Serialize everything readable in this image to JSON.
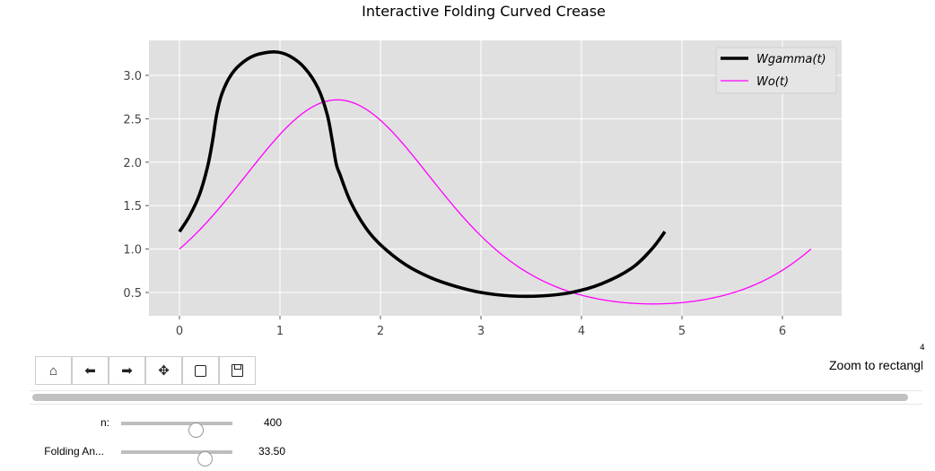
{
  "chart_data": {
    "type": "line",
    "title": "Interactive Folding Curved Crease",
    "xlabel": "",
    "ylabel": "",
    "xlim": [
      -0.3,
      6.6
    ],
    "ylim": [
      0.23,
      3.4
    ],
    "xticks": [
      "0",
      "1",
      "2",
      "3",
      "4",
      "5",
      "6"
    ],
    "yticks": [
      "0.5",
      "1.0",
      "1.5",
      "2.0",
      "2.5",
      "3.0"
    ],
    "grid": true,
    "legend_position": "top-right",
    "series": [
      {
        "name": "Wgamma(t)",
        "color": "#000000",
        "x": [
          0,
          0.1,
          0.2,
          0.28,
          0.33,
          0.37,
          0.42,
          0.5,
          0.6,
          0.75,
          0.95,
          1.1,
          1.25,
          1.38,
          1.47,
          1.52,
          1.56,
          1.6,
          1.7,
          1.85,
          2.0,
          2.25,
          2.5,
          2.75,
          3.0,
          3.3,
          3.6,
          3.9,
          4.2,
          4.5,
          4.7,
          4.83
        ],
        "y": [
          1.2,
          1.38,
          1.63,
          1.95,
          2.25,
          2.55,
          2.78,
          2.98,
          3.12,
          3.23,
          3.27,
          3.22,
          3.08,
          2.85,
          2.55,
          2.25,
          1.98,
          1.85,
          1.55,
          1.25,
          1.05,
          0.82,
          0.67,
          0.57,
          0.5,
          0.46,
          0.46,
          0.5,
          0.6,
          0.78,
          1.0,
          1.2
        ]
      },
      {
        "name": "Wo(t)",
        "color": "#ff00ff",
        "formula": "exp(sin(t))",
        "tmin": 0,
        "tmax": 6.2832
      }
    ]
  },
  "toolbar": {
    "buttons": [
      {
        "name": "home",
        "glyph": "⌂"
      },
      {
        "name": "back",
        "glyph": "🡐"
      },
      {
        "name": "forward",
        "glyph": "🡒"
      },
      {
        "name": "pan",
        "glyph": "✥"
      },
      {
        "name": "zoom",
        "glyph": "▢"
      },
      {
        "name": "save",
        "glyph": "💾"
      }
    ],
    "message": "Zoom to rectangle",
    "corner_mark": "4"
  },
  "sliders": [
    {
      "label": "n:",
      "value": "400",
      "fraction": 0.67
    },
    {
      "label": "Folding An...",
      "value": "33.50",
      "fraction": 0.75
    }
  ]
}
